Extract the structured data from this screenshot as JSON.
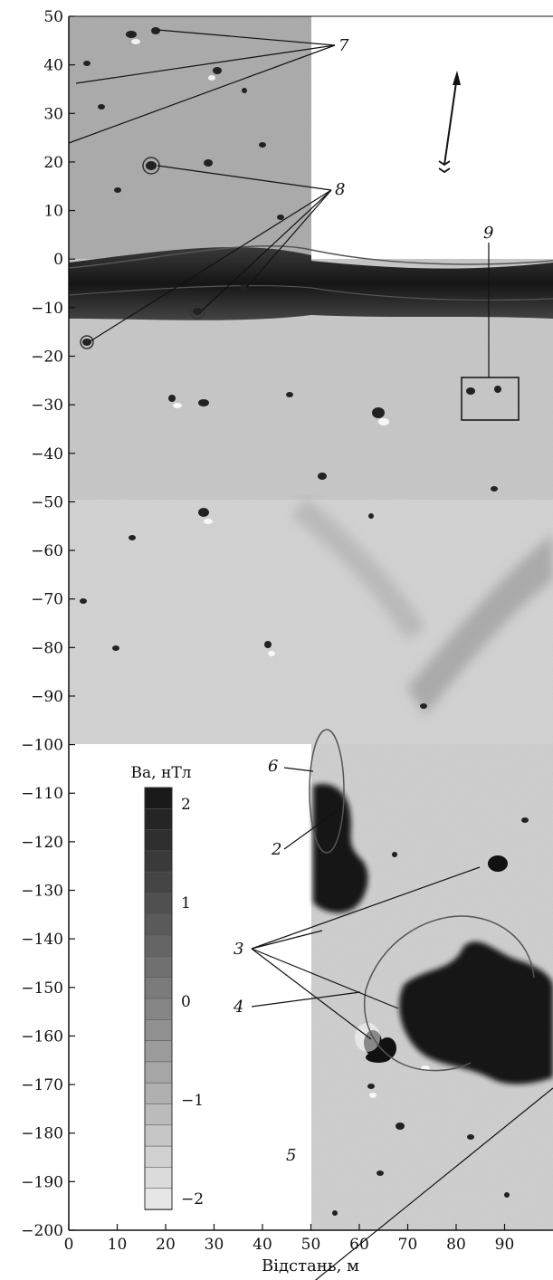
{
  "map": {
    "xlabel": "Відстань, м",
    "x_ticks": [
      "0",
      "10",
      "20",
      "30",
      "40",
      "50",
      "60",
      "70",
      "80",
      "90"
    ],
    "y_ticks": [
      "50",
      "40",
      "30",
      "20",
      "10",
      "0",
      "−10",
      "−20",
      "−30",
      "−40",
      "−50",
      "−60",
      "−70",
      "−80",
      "−90",
      "−100",
      "−110",
      "−120",
      "−130",
      "−140",
      "−150",
      "−160",
      "−170",
      "−180",
      "−190",
      "−200"
    ],
    "x_range": [
      0,
      100
    ],
    "y_range": [
      -200,
      50
    ],
    "north_arrow_icon": "north-arrow-icon"
  },
  "colorbar": {
    "title": "Ва, нТл",
    "ticks": [
      "2",
      "1",
      "0",
      "−1",
      "−2"
    ],
    "range": [
      -2,
      2
    ],
    "dark_color": "#1a1a1a",
    "light_color": "#e6e6e6"
  },
  "callouts": {
    "c2": "2",
    "c3": "3",
    "c4": "4",
    "c5": "5",
    "c6": "6",
    "c7": "7",
    "c8": "8",
    "c9": "9"
  }
}
